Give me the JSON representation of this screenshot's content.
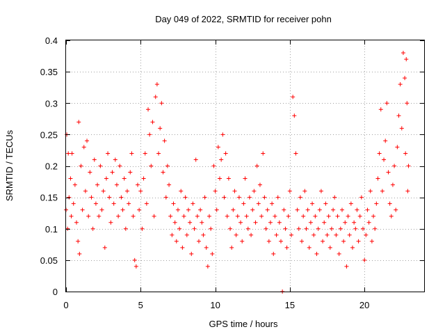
{
  "chart_data": {
    "type": "scatter",
    "title": "Day 049 of 2022, SRMTID for receiver pohn",
    "xlabel": "GPS time / hours",
    "ylabel": "SRMTID / TECUs",
    "xlim": [
      0,
      24
    ],
    "ylim": [
      0,
      0.4
    ],
    "xticks": [
      0,
      5,
      10,
      15,
      20
    ],
    "xtick_labels": [
      "0",
      "5",
      "10",
      "15",
      "20"
    ],
    "yticks": [
      0,
      0.05,
      0.1,
      0.15,
      0.2,
      0.25,
      0.3,
      0.35,
      0.4
    ],
    "ytick_labels": [
      "0",
      "0.05",
      "0.1",
      "0.15",
      "0.2",
      "0.25",
      "0.3",
      "0.35",
      "0.4"
    ],
    "grid": true,
    "marker": "+",
    "color": "#ff0000",
    "series": [
      {
        "name": "SRMTID",
        "points": [
          [
            0.0,
            0.13
          ],
          [
            0.05,
            0.25
          ],
          [
            0.1,
            0.1
          ],
          [
            0.15,
            0.22
          ],
          [
            0.2,
            0.15
          ],
          [
            0.3,
            0.18
          ],
          [
            0.35,
            0.12
          ],
          [
            0.4,
            0.22
          ],
          [
            0.5,
            0.14
          ],
          [
            0.6,
            0.17
          ],
          [
            0.7,
            0.11
          ],
          [
            0.8,
            0.08
          ],
          [
            0.85,
            0.27
          ],
          [
            0.9,
            0.06
          ],
          [
            1.0,
            0.2
          ],
          [
            1.1,
            0.13
          ],
          [
            1.2,
            0.23
          ],
          [
            1.3,
            0.16
          ],
          [
            1.4,
            0.24
          ],
          [
            1.5,
            0.12
          ],
          [
            1.6,
            0.19
          ],
          [
            1.7,
            0.15
          ],
          [
            1.8,
            0.1
          ],
          [
            1.9,
            0.21
          ],
          [
            2.0,
            0.14
          ],
          [
            2.1,
            0.17
          ],
          [
            2.2,
            0.12
          ],
          [
            2.3,
            0.2
          ],
          [
            2.4,
            0.13
          ],
          [
            2.5,
            0.16
          ],
          [
            2.6,
            0.07
          ],
          [
            2.7,
            0.18
          ],
          [
            2.8,
            0.22
          ],
          [
            2.9,
            0.15
          ],
          [
            3.0,
            0.11
          ],
          [
            3.1,
            0.19
          ],
          [
            3.2,
            0.14
          ],
          [
            3.3,
            0.21
          ],
          [
            3.4,
            0.17
          ],
          [
            3.5,
            0.12
          ],
          [
            3.6,
            0.2
          ],
          [
            3.7,
            0.15
          ],
          [
            3.8,
            0.13
          ],
          [
            3.9,
            0.18
          ],
          [
            4.0,
            0.1
          ],
          [
            4.1,
            0.16
          ],
          [
            4.2,
            0.14
          ],
          [
            4.3,
            0.19
          ],
          [
            4.4,
            0.22
          ],
          [
            4.5,
            0.12
          ],
          [
            4.6,
            0.05
          ],
          [
            4.7,
            0.04
          ],
          [
            4.8,
            0.17
          ],
          [
            4.9,
            0.13
          ],
          [
            5.0,
            0.16
          ],
          [
            5.1,
            0.1
          ],
          [
            5.2,
            0.18
          ],
          [
            5.3,
            0.22
          ],
          [
            5.4,
            0.14
          ],
          [
            5.5,
            0.29
          ],
          [
            5.6,
            0.25
          ],
          [
            5.7,
            0.2
          ],
          [
            5.8,
            0.27
          ],
          [
            5.9,
            0.12
          ],
          [
            6.0,
            0.31
          ],
          [
            6.1,
            0.33
          ],
          [
            6.2,
            0.22
          ],
          [
            6.3,
            0.26
          ],
          [
            6.4,
            0.3
          ],
          [
            6.5,
            0.19
          ],
          [
            6.6,
            0.24
          ],
          [
            6.7,
            0.15
          ],
          [
            6.8,
            0.2
          ],
          [
            6.9,
            0.17
          ],
          [
            7.0,
            0.12
          ],
          [
            7.1,
            0.09
          ],
          [
            7.2,
            0.14
          ],
          [
            7.3,
            0.11
          ],
          [
            7.4,
            0.08
          ],
          [
            7.5,
            0.13
          ],
          [
            7.6,
            0.1
          ],
          [
            7.7,
            0.16
          ],
          [
            7.8,
            0.07
          ],
          [
            7.9,
            0.12
          ],
          [
            8.0,
            0.15
          ],
          [
            8.1,
            0.09
          ],
          [
            8.2,
            0.13
          ],
          [
            8.3,
            0.11
          ],
          [
            8.4,
            0.06
          ],
          [
            8.5,
            0.14
          ],
          [
            8.6,
            0.1
          ],
          [
            8.7,
            0.21
          ],
          [
            8.8,
            0.12
          ],
          [
            8.9,
            0.08
          ],
          [
            9.0,
            0.13
          ],
          [
            9.1,
            0.11
          ],
          [
            9.2,
            0.09
          ],
          [
            9.3,
            0.15
          ],
          [
            9.4,
            0.07
          ],
          [
            9.5,
            0.04
          ],
          [
            9.6,
            0.12
          ],
          [
            9.7,
            0.1
          ],
          [
            9.8,
            0.06
          ],
          [
            9.9,
            0.2
          ],
          [
            10.0,
            0.16
          ],
          [
            10.1,
            0.13
          ],
          [
            10.2,
            0.23
          ],
          [
            10.3,
            0.18
          ],
          [
            10.4,
            0.21
          ],
          [
            10.5,
            0.25
          ],
          [
            10.6,
            0.15
          ],
          [
            10.7,
            0.22
          ],
          [
            10.8,
            0.12
          ],
          [
            10.9,
            0.18
          ],
          [
            11.0,
            0.1
          ],
          [
            11.1,
            0.07
          ],
          [
            11.2,
            0.13
          ],
          [
            11.3,
            0.16
          ],
          [
            11.4,
            0.09
          ],
          [
            11.5,
            0.12
          ],
          [
            11.6,
            0.15
          ],
          [
            11.7,
            0.11
          ],
          [
            11.8,
            0.08
          ],
          [
            11.9,
            0.14
          ],
          [
            12.0,
            0.18
          ],
          [
            12.1,
            0.12
          ],
          [
            12.2,
            0.1
          ],
          [
            12.3,
            0.15
          ],
          [
            12.4,
            0.09
          ],
          [
            12.5,
            0.13
          ],
          [
            12.6,
            0.16
          ],
          [
            12.7,
            0.11
          ],
          [
            12.8,
            0.2
          ],
          [
            12.9,
            0.14
          ],
          [
            13.0,
            0.17
          ],
          [
            13.1,
            0.12
          ],
          [
            13.2,
            0.22
          ],
          [
            13.3,
            0.15
          ],
          [
            13.4,
            0.1
          ],
          [
            13.5,
            0.13
          ],
          [
            13.6,
            0.08
          ],
          [
            13.7,
            0.11
          ],
          [
            13.8,
            0.14
          ],
          [
            13.9,
            0.06
          ],
          [
            14.0,
            0.12
          ],
          [
            14.1,
            0.09
          ],
          [
            14.2,
            0.15
          ],
          [
            14.3,
            0.11
          ],
          [
            14.4,
            0.08
          ],
          [
            14.5,
            0.0
          ],
          [
            14.6,
            0.13
          ],
          [
            14.7,
            0.1
          ],
          [
            14.8,
            0.07
          ],
          [
            14.9,
            0.12
          ],
          [
            15.0,
            0.16
          ],
          [
            15.1,
            0.09
          ],
          [
            15.2,
            0.31
          ],
          [
            15.3,
            0.28
          ],
          [
            15.4,
            0.22
          ],
          [
            15.5,
            0.13
          ],
          [
            15.6,
            0.1
          ],
          [
            15.7,
            0.15
          ],
          [
            15.8,
            0.08
          ],
          [
            15.9,
            0.12
          ],
          [
            16.0,
            0.16
          ],
          [
            16.1,
            0.1
          ],
          [
            16.2,
            0.13
          ],
          [
            16.3,
            0.07
          ],
          [
            16.4,
            0.11
          ],
          [
            16.5,
            0.14
          ],
          [
            16.6,
            0.09
          ],
          [
            16.7,
            0.12
          ],
          [
            16.8,
            0.06
          ],
          [
            16.9,
            0.1
          ],
          [
            17.0,
            0.13
          ],
          [
            17.1,
            0.16
          ],
          [
            17.2,
            0.08
          ],
          [
            17.3,
            0.11
          ],
          [
            17.4,
            0.14
          ],
          [
            17.5,
            0.09
          ],
          [
            17.6,
            0.12
          ],
          [
            17.7,
            0.07
          ],
          [
            17.8,
            0.1
          ],
          [
            17.9,
            0.13
          ],
          [
            18.0,
            0.15
          ],
          [
            18.1,
            0.09
          ],
          [
            18.2,
            0.12
          ],
          [
            18.3,
            0.06
          ],
          [
            18.4,
            0.1
          ],
          [
            18.5,
            0.13
          ],
          [
            18.6,
            0.08
          ],
          [
            18.7,
            0.11
          ],
          [
            18.8,
            0.04
          ],
          [
            18.9,
            0.12
          ],
          [
            19.0,
            0.09
          ],
          [
            19.1,
            0.14
          ],
          [
            19.2,
            0.07
          ],
          [
            19.3,
            0.11
          ],
          [
            19.4,
            0.1
          ],
          [
            19.5,
            0.13
          ],
          [
            19.6,
            0.08
          ],
          [
            19.7,
            0.12
          ],
          [
            19.8,
            0.15
          ],
          [
            19.9,
            0.1
          ],
          [
            20.0,
            0.05
          ],
          [
            20.1,
            0.09
          ],
          [
            20.2,
            0.13
          ],
          [
            20.3,
            0.11
          ],
          [
            20.4,
            0.16
          ],
          [
            20.5,
            0.08
          ],
          [
            20.6,
            0.12
          ],
          [
            20.7,
            0.1
          ],
          [
            20.8,
            0.14
          ],
          [
            20.9,
            0.18
          ],
          [
            21.0,
            0.22
          ],
          [
            21.1,
            0.29
          ],
          [
            21.2,
            0.16
          ],
          [
            21.3,
            0.21
          ],
          [
            21.4,
            0.24
          ],
          [
            21.5,
            0.3
          ],
          [
            21.6,
            0.19
          ],
          [
            21.7,
            0.14
          ],
          [
            21.8,
            0.12
          ],
          [
            21.9,
            0.17
          ],
          [
            22.0,
            0.2
          ],
          [
            22.1,
            0.13
          ],
          [
            22.2,
            0.23
          ],
          [
            22.3,
            0.28
          ],
          [
            22.4,
            0.33
          ],
          [
            22.5,
            0.26
          ],
          [
            22.6,
            0.38
          ],
          [
            22.7,
            0.34
          ],
          [
            22.75,
            0.22
          ],
          [
            22.8,
            0.37
          ],
          [
            22.85,
            0.3
          ],
          [
            22.9,
            0.16
          ],
          [
            22.95,
            0.2
          ]
        ]
      }
    ]
  }
}
